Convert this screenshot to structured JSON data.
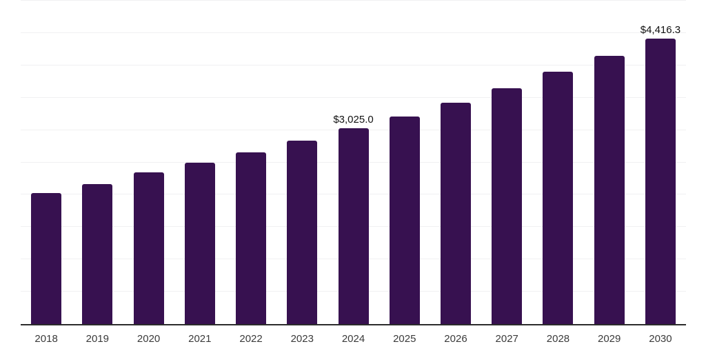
{
  "chart_data": {
    "type": "bar",
    "title": "",
    "categories": [
      "2018",
      "2019",
      "2020",
      "2021",
      "2022",
      "2023",
      "2024",
      "2025",
      "2026",
      "2027",
      "2028",
      "2029",
      "2030"
    ],
    "values": [
      2025,
      2160,
      2350,
      2500,
      2660,
      2840,
      3025.0,
      3210,
      3425,
      3645,
      3900,
      4150,
      4416.3
    ],
    "value_labels": {
      "2024": "$3,025.0",
      "2030": "$4,416.3"
    },
    "xlabel": "",
    "ylabel": "",
    "ylim": [
      0,
      5000
    ],
    "grid_step": 500,
    "grid": "horizontal",
    "legend_position": "none",
    "colors": {
      "bar": "#371150",
      "axis": "#2b2b2b",
      "grid": "#f0f0f2",
      "value_label": "#111111",
      "tick_label": "#3a3a3a",
      "background": "#ffffff"
    }
  }
}
